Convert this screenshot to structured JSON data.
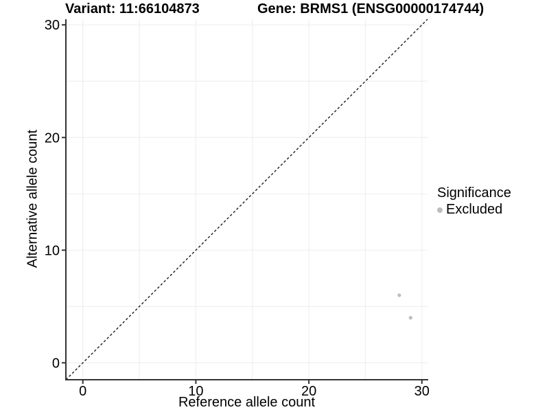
{
  "figure": {
    "title_left": "Variant: 11:66104873",
    "title_right": "Gene: BRMS1 (ENSG00000174744)"
  },
  "axes": {
    "x_label": "Reference allele count",
    "y_label": "Alternative allele count"
  },
  "legend": {
    "title": "Significance",
    "items": [
      {
        "label": "Excluded",
        "color": "#bdbdbd"
      }
    ]
  },
  "chart_data": {
    "type": "scatter",
    "title": "Variant: 11:66104873 | Gene: BRMS1 (ENSG00000174744)",
    "xlabel": "Reference allele count",
    "ylabel": "Alternative allele count",
    "xlim": [
      -1.5,
      30.5
    ],
    "ylim": [
      -1.5,
      30.5
    ],
    "x_ticks": [
      0,
      10,
      20,
      30
    ],
    "y_ticks": [
      0,
      10,
      20,
      30
    ],
    "grid": true,
    "grid_interval": 5,
    "legend_position": "right",
    "series": [
      {
        "name": "Excluded",
        "color": "#bdbdbd",
        "points": [
          {
            "x": 28,
            "y": 6
          },
          {
            "x": 29,
            "y": 4
          }
        ]
      }
    ],
    "reference_line": {
      "type": "identity",
      "style": "dashed",
      "from": [
        -1.5,
        -1.5
      ],
      "to": [
        30.5,
        30.5
      ],
      "color": "#1a1a1a"
    }
  },
  "colors": {
    "background": "#ffffff",
    "grid": "#efefef",
    "axis": "#333333",
    "text": "#000000",
    "point": "#bdbdbd"
  }
}
